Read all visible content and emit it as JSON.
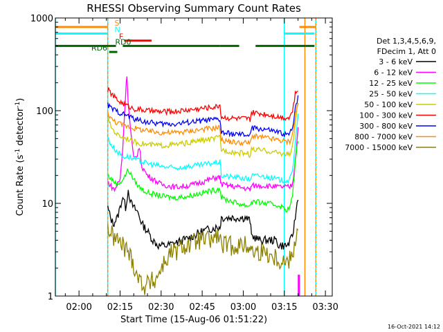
{
  "chart_data": {
    "type": "line",
    "title": "RHESSI Observing Summary Count Rates",
    "xlabel": "Start Time (15-Aug-06 01:51:22)",
    "ylabel_main": "Count Rate (s",
    "ylabel_sup": "-1",
    "ylabel_tail": " detector",
    "ylabel_end": ")",
    "yscale": "log",
    "ylim": [
      1,
      1000
    ],
    "xlim_minutes": [
      111.37,
      212.5
    ],
    "y_ticks": [
      {
        "value": 1,
        "label": "1"
      },
      {
        "value": 10,
        "label": "10"
      },
      {
        "value": 100,
        "label": "100"
      },
      {
        "value": 1000,
        "label": "1000"
      }
    ],
    "x_ticks": [
      {
        "minute": 120,
        "label": "02:00"
      },
      {
        "minute": 135,
        "label": "02:15"
      },
      {
        "minute": 150,
        "label": "02:30"
      },
      {
        "minute": 165,
        "label": "02:45"
      },
      {
        "minute": 180,
        "label": "03:00"
      },
      {
        "minute": 195,
        "label": "03:15"
      },
      {
        "minute": 210,
        "label": "03:30"
      }
    ],
    "legend": {
      "header1": "Det 1,3,4,5,6,9,",
      "header2": "FDecim 1, Att 0",
      "placement": "right"
    },
    "series": [
      {
        "name": "3 - 6 keV",
        "color": "#000000",
        "points": [
          [
            130.5,
            9
          ],
          [
            131.5,
            7
          ],
          [
            132.5,
            6
          ],
          [
            134,
            7
          ],
          [
            135,
            9
          ],
          [
            136,
            12
          ],
          [
            137,
            9
          ],
          [
            138,
            14
          ],
          [
            139,
            10
          ],
          [
            140,
            9
          ],
          [
            141.5,
            8
          ],
          [
            143,
            6
          ],
          [
            145,
            5
          ],
          [
            147,
            4
          ],
          [
            149,
            3.5
          ],
          [
            152,
            3.5
          ],
          [
            156,
            3.8
          ],
          [
            160,
            4.2
          ],
          [
            165,
            5
          ],
          [
            170,
            5.5
          ],
          [
            171.5,
            5.5
          ],
          [
            172,
            7
          ],
          [
            175,
            7
          ],
          [
            178,
            7
          ],
          [
            181,
            7
          ],
          [
            182.5,
            6.5
          ],
          [
            183,
            4.5
          ],
          [
            186,
            4
          ],
          [
            189,
            4
          ],
          [
            192,
            4
          ],
          [
            193,
            3.5
          ],
          [
            196,
            3.5
          ],
          [
            197,
            3.8
          ],
          [
            198,
            4.5
          ],
          [
            199,
            7
          ],
          [
            200,
            12
          ]
        ]
      },
      {
        "name": "6 - 12 keV",
        "color": "#ff00ff",
        "points": [
          [
            130.5,
            17
          ],
          [
            132,
            15
          ],
          [
            133,
            14
          ],
          [
            135,
            18
          ],
          [
            136,
            40
          ],
          [
            137,
            150
          ],
          [
            137.5,
            250
          ],
          [
            138,
            120
          ],
          [
            139,
            55
          ],
          [
            140,
            30
          ],
          [
            141,
            32
          ],
          [
            142,
            40
          ],
          [
            143,
            25
          ],
          [
            145,
            20
          ],
          [
            150,
            16
          ],
          [
            155,
            15
          ],
          [
            160,
            15.5
          ],
          [
            165,
            17
          ],
          [
            170,
            19
          ],
          [
            171.5,
            19
          ],
          [
            172,
            16
          ],
          [
            178,
            15
          ],
          [
            181,
            14.5
          ],
          [
            182.5,
            14
          ],
          [
            183,
            15.5
          ],
          [
            188,
            15.5
          ],
          [
            193,
            15
          ],
          [
            196,
            15
          ],
          [
            197,
            15
          ],
          [
            198,
            16
          ],
          [
            199,
            30
          ],
          [
            200,
            65
          ]
        ]
      },
      {
        "name": "12 - 25 keV",
        "color": "#00ff00",
        "points": [
          [
            130.5,
            20
          ],
          [
            132,
            18
          ],
          [
            134,
            16
          ],
          [
            136,
            18
          ],
          [
            138,
            23
          ],
          [
            140,
            18
          ],
          [
            142,
            15
          ],
          [
            145,
            13
          ],
          [
            150,
            12
          ],
          [
            155,
            11.5
          ],
          [
            160,
            12
          ],
          [
            165,
            13
          ],
          [
            170,
            14
          ],
          [
            171.5,
            14.5
          ],
          [
            172,
            11.5
          ],
          [
            178,
            10
          ],
          [
            181,
            9.5
          ],
          [
            182.5,
            9.5
          ],
          [
            183,
            10.5
          ],
          [
            188,
            10
          ],
          [
            193,
            9.5
          ],
          [
            196,
            8.5
          ],
          [
            197,
            9
          ],
          [
            198,
            12
          ],
          [
            199,
            28
          ],
          [
            200,
            50
          ]
        ]
      },
      {
        "name": "25 - 50 keV",
        "color": "#00ffff",
        "points": [
          [
            130.5,
            50
          ],
          [
            132,
            42
          ],
          [
            134,
            36
          ],
          [
            136,
            32
          ],
          [
            138,
            32
          ],
          [
            140,
            30
          ],
          [
            145,
            27
          ],
          [
            150,
            25
          ],
          [
            155,
            24
          ],
          [
            160,
            25
          ],
          [
            165,
            26
          ],
          [
            170,
            27.5
          ],
          [
            171.5,
            28
          ],
          [
            172,
            20
          ],
          [
            178,
            19
          ],
          [
            181,
            18.5
          ],
          [
            182.5,
            18
          ],
          [
            183,
            20
          ],
          [
            188,
            19.5
          ],
          [
            193,
            18
          ],
          [
            196,
            17.5
          ],
          [
            197,
            18
          ],
          [
            198,
            22
          ],
          [
            199,
            48
          ],
          [
            200,
            90
          ]
        ]
      },
      {
        "name": "50 - 100 keV",
        "color": "#cccc00",
        "points": [
          [
            130.5,
            80
          ],
          [
            132,
            65
          ],
          [
            134,
            55
          ],
          [
            136,
            52
          ],
          [
            138,
            50
          ],
          [
            140,
            46
          ],
          [
            145,
            43
          ],
          [
            150,
            42
          ],
          [
            155,
            43
          ],
          [
            160,
            45
          ],
          [
            165,
            48
          ],
          [
            170,
            50
          ],
          [
            171.5,
            52
          ],
          [
            172,
            38
          ],
          [
            178,
            35
          ],
          [
            181,
            35
          ],
          [
            182.5,
            33
          ],
          [
            183,
            38
          ],
          [
            188,
            37
          ],
          [
            193,
            35
          ],
          [
            196,
            34
          ],
          [
            197,
            34
          ],
          [
            198,
            40
          ],
          [
            199,
            75
          ],
          [
            200,
            120
          ]
        ]
      },
      {
        "name": "100 - 300 keV",
        "color": "#ff0000",
        "points": [
          [
            130.5,
            170
          ],
          [
            132,
            150
          ],
          [
            134,
            130
          ],
          [
            136,
            120
          ],
          [
            138,
            112
          ],
          [
            140,
            105
          ],
          [
            145,
            100
          ],
          [
            150,
            97
          ],
          [
            155,
            98
          ],
          [
            160,
            102
          ],
          [
            165,
            106
          ],
          [
            170,
            110
          ],
          [
            171.5,
            115
          ],
          [
            172,
            85
          ],
          [
            178,
            82
          ],
          [
            181,
            82
          ],
          [
            182.5,
            80
          ],
          [
            183,
            95
          ],
          [
            188,
            92
          ],
          [
            193,
            86
          ],
          [
            196,
            84
          ],
          [
            197,
            86
          ],
          [
            198,
            100
          ],
          [
            199,
            150
          ],
          [
            200,
            170
          ]
        ]
      },
      {
        "name": "300 - 800 keV",
        "color": "#0000ff",
        "points": [
          [
            130.5,
            115
          ],
          [
            132,
            105
          ],
          [
            134,
            98
          ],
          [
            136,
            92
          ],
          [
            138,
            88
          ],
          [
            140,
            82
          ],
          [
            145,
            75
          ],
          [
            150,
            72
          ],
          [
            155,
            72
          ],
          [
            160,
            75
          ],
          [
            165,
            78
          ],
          [
            170,
            80
          ],
          [
            171.5,
            80
          ],
          [
            172,
            58
          ],
          [
            178,
            55
          ],
          [
            181,
            55
          ],
          [
            182.5,
            53
          ],
          [
            183,
            65
          ],
          [
            188,
            63
          ],
          [
            193,
            58
          ],
          [
            196,
            55
          ],
          [
            197,
            56
          ],
          [
            198,
            65
          ],
          [
            199,
            110
          ],
          [
            200,
            140
          ]
        ]
      },
      {
        "name": "800 - 7000 keV",
        "color": "#ff8c00",
        "points": [
          [
            130.5,
            95
          ],
          [
            132,
            80
          ],
          [
            134,
            74
          ],
          [
            136,
            70
          ],
          [
            138,
            68
          ],
          [
            140,
            65
          ],
          [
            145,
            60
          ],
          [
            150,
            58
          ],
          [
            155,
            58
          ],
          [
            160,
            60
          ],
          [
            165,
            63
          ],
          [
            170,
            65
          ],
          [
            171.5,
            66
          ],
          [
            172,
            48
          ],
          [
            178,
            45
          ],
          [
            181,
            45
          ],
          [
            182.5,
            44
          ],
          [
            183,
            53
          ],
          [
            188,
            51
          ],
          [
            193,
            48
          ],
          [
            196,
            46
          ],
          [
            197,
            47
          ],
          [
            198,
            55
          ],
          [
            199,
            90
          ],
          [
            200,
            120
          ]
        ]
      },
      {
        "name": "7000 - 15000 keV",
        "color": "#8b8000",
        "points": [
          [
            130.5,
            5.5
          ],
          [
            132,
            4.5
          ],
          [
            134,
            4
          ],
          [
            136,
            3.5
          ],
          [
            138,
            3
          ],
          [
            140,
            2.2
          ],
          [
            142,
            1.5
          ],
          [
            144,
            1.3
          ],
          [
            146,
            1.4
          ],
          [
            148,
            1.5
          ],
          [
            150,
            2
          ],
          [
            152,
            2.5
          ],
          [
            154,
            3
          ],
          [
            156,
            3
          ],
          [
            158,
            3.5
          ],
          [
            160,
            3.5
          ],
          [
            164,
            4
          ],
          [
            168,
            4
          ],
          [
            171,
            4.5
          ],
          [
            172,
            3.5
          ],
          [
            176,
            3.5
          ],
          [
            180,
            3.5
          ],
          [
            182.5,
            3.5
          ],
          [
            183,
            3
          ],
          [
            188,
            3
          ],
          [
            193,
            2.5
          ],
          [
            196,
            2.3
          ],
          [
            197,
            2.5
          ],
          [
            198,
            3
          ],
          [
            199,
            4
          ],
          [
            200,
            6
          ]
        ]
      }
    ],
    "state_bars": [
      {
        "label": "S",
        "color": "#ff8c00",
        "y_value": 800,
        "segments": [
          [
            111.37,
            130.5
          ],
          [
            200.5,
            206.5
          ]
        ],
        "label_minute": 133
      },
      {
        "label": "N",
        "color": "#00ffff",
        "y_value": 680,
        "segments": [
          [
            111.37,
            130.5
          ],
          [
            195,
            206
          ]
        ],
        "label_minute": 133
      },
      {
        "label": "F",
        "color": "#ff0000",
        "y_value": 570,
        "segments": [
          [
            136.5,
            146.5
          ]
        ],
        "label_minute": 134.6
      },
      {
        "label": "RD0",
        "color": "#006400",
        "y_value": 500,
        "segments": [
          [
            111.37,
            133.5
          ],
          [
            136,
            171.5
          ],
          [
            171.5,
            178.5
          ],
          [
            184.5,
            206
          ]
        ],
        "label_minute": 133.2
      },
      {
        "label": "RD6",
        "color": "#006400",
        "y_value": 430,
        "segments": [
          [
            131,
            134
          ]
        ],
        "label_minute": 124.5
      }
    ],
    "vertical_lines": [
      {
        "minute": 111.37,
        "color": "#00ffff",
        "dashed": false
      },
      {
        "minute": 130.5,
        "color": "#00ffff",
        "dashed": false
      },
      {
        "minute": 130.5,
        "color": "#ff8c00",
        "dashed": true
      },
      {
        "minute": 195,
        "color": "#00ffff",
        "dashed": false
      },
      {
        "minute": 202.5,
        "color": "#ff8c00",
        "dashed": false
      },
      {
        "minute": 206.5,
        "color": "#00ffff",
        "dashed": false
      },
      {
        "minute": 206.5,
        "color": "#ff8c00",
        "dashed": true
      }
    ],
    "magenta_marker": {
      "minute": 200.3,
      "from_value": 1,
      "to_value": 1.7,
      "color": "#ff00ff"
    },
    "timestamp": "16-Oct-2021 14:12"
  }
}
